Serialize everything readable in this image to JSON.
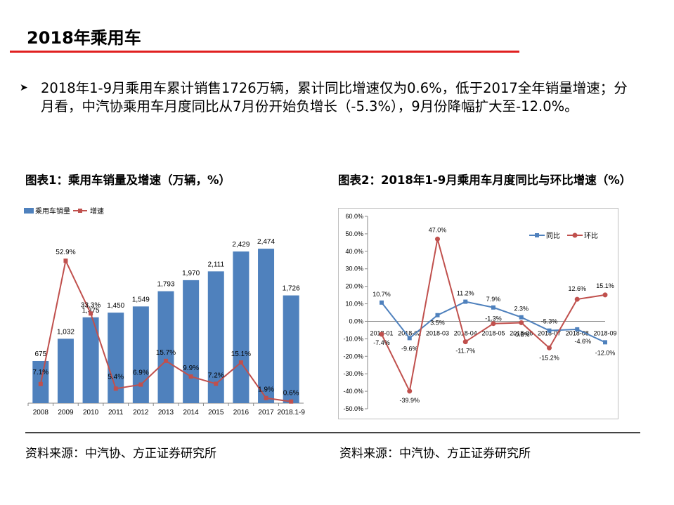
{
  "page": {
    "title": "2018年乘用车",
    "bullet": "2018年1-9月乘用车累计销售1726万辆，累计同比增速仅为0.6%，低于2017全年销量增速；分月看，中汽协乘用车月度同比从7月份开始负增长（-5.3%），9月份降幅扩大至-12.0%。",
    "fig1_title": "图表1：乘用车销量及增速（万辆，%）",
    "fig2_title": "图表2：2018年1-9月乘用车月度同比与环比增速（%）",
    "source1": "资料来源：中汽协、方正证券研究所",
    "source2": "资料来源：中汽协、方正证券研究所"
  },
  "colors": {
    "accent_red": "#e02020",
    "bar_blue": "#4f81bd",
    "line_red": "#c0504d"
  },
  "chart_data": [
    {
      "type": "bar",
      "categories": [
        "2008",
        "2009",
        "2010",
        "2011",
        "2012",
        "2013",
        "2014",
        "2015",
        "2016",
        "2017",
        "2018.1-9"
      ],
      "series": [
        {
          "name": "乘用车销量",
          "type": "bar",
          "values": [
            675,
            1032,
            1375,
            1450,
            1549,
            1793,
            1970,
            2111,
            2429,
            2474,
            1726
          ],
          "labels": [
            "675",
            "1,032",
            "1,375",
            "1,450",
            "1,549",
            "1,793",
            "1,970",
            "2,111",
            "2,429",
            "2,474",
            "1,726"
          ]
        },
        {
          "name": "增速",
          "type": "line",
          "values": [
            7.1,
            52.9,
            33.3,
            5.4,
            6.9,
            15.7,
            9.9,
            7.2,
            15.1,
            1.9,
            0.6
          ],
          "labels": [
            "7.1%",
            "52.9%",
            "33.3%",
            "5.4%",
            "6.9%",
            "15.7%",
            "9.9%",
            "7.2%",
            "15.1%",
            "1.9%",
            "0.6%"
          ]
        }
      ],
      "ylim": [
        0,
        2700
      ],
      "y2lim": [
        0,
        60
      ],
      "legend": "top-left"
    },
    {
      "type": "line",
      "categories": [
        "2018-01",
        "2018-02",
        "2018-03",
        "2018-04",
        "2018-05",
        "2018-06",
        "2018-07",
        "2018-08",
        "2018-09"
      ],
      "series": [
        {
          "name": "同比",
          "values": [
            10.7,
            -9.6,
            3.5,
            11.2,
            7.9,
            2.3,
            -5.3,
            -4.6,
            -12.0
          ],
          "labels": [
            "10.7%",
            "-9.6%",
            "3.5%",
            "11.2%",
            "7.9%",
            "2.3%",
            "-5.3%",
            "-4.6%",
            "-12.0%"
          ]
        },
        {
          "name": "环比",
          "values": [
            -7.4,
            -39.9,
            47.0,
            -11.7,
            -1.3,
            -0.8,
            -15.2,
            12.6,
            15.1
          ],
          "labels": [
            "-7.4%",
            "-39.9%",
            "47.0%",
            "-11.7%",
            "-1.3%",
            "-0.8%",
            "-15.2%",
            "12.6%",
            "15.1%"
          ]
        }
      ],
      "yticks": [
        "60.0%",
        "50.0%",
        "40.0%",
        "30.0%",
        "20.0%",
        "10.0%",
        "0.0%",
        "-10.0%",
        "-20.0%",
        "-30.0%",
        "-40.0%",
        "-50.0%"
      ],
      "ylim": [
        -50,
        60
      ],
      "legend": "top-right"
    }
  ]
}
